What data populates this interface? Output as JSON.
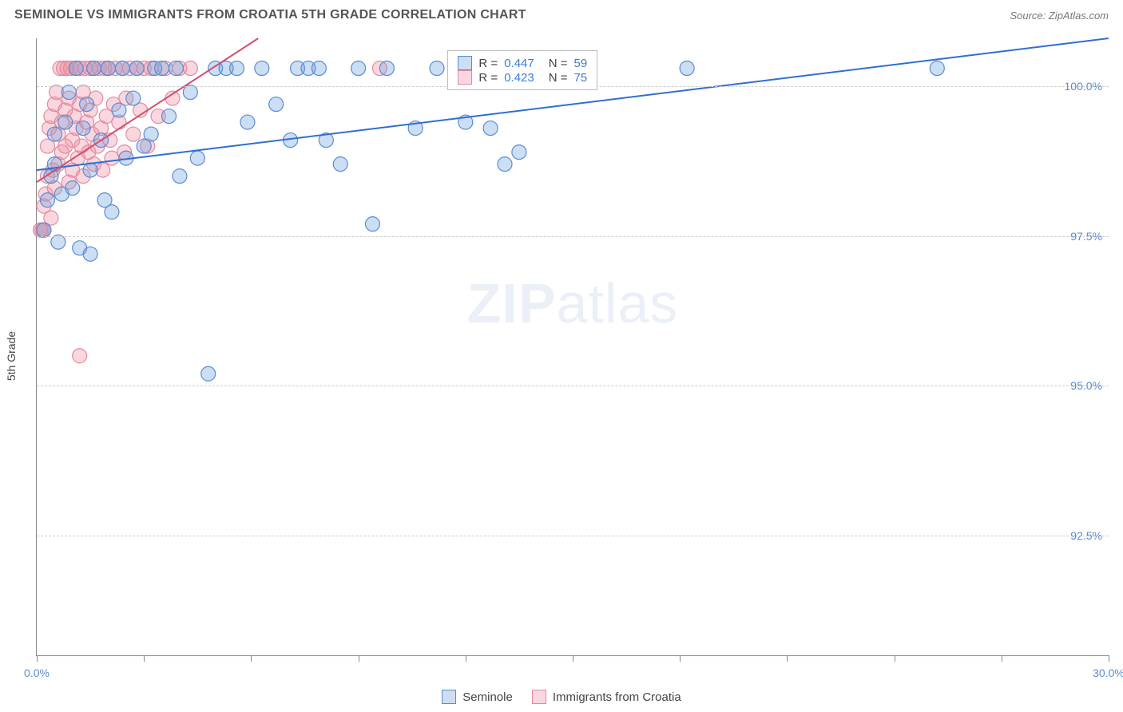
{
  "header": {
    "title": "SEMINOLE VS IMMIGRANTS FROM CROATIA 5TH GRADE CORRELATION CHART",
    "source": "Source: ZipAtlas.com"
  },
  "chart": {
    "type": "scatter",
    "ylabel": "5th Grade",
    "xlim": [
      0,
      30
    ],
    "ylim": [
      90.5,
      100.8
    ],
    "xticks": [
      0,
      3,
      6,
      9,
      12,
      15,
      18,
      21,
      24,
      27,
      30
    ],
    "xtick_labels": {
      "0": "0.0%",
      "30": "30.0%"
    },
    "yticks": [
      92.5,
      95.0,
      97.5,
      100.0
    ],
    "ytick_labels": [
      "92.5%",
      "95.0%",
      "97.5%",
      "100.0%"
    ],
    "background_color": "#ffffff",
    "grid_color": "#cccccc",
    "marker_radius": 9,
    "marker_stroke_width": 1.2,
    "trend_line_width": 2,
    "series": [
      {
        "name": "Seminole",
        "fill": "rgba(110,160,220,0.35)",
        "stroke": "#5b8bd4",
        "trend_color": "#2e6fd0",
        "R": "0.447",
        "N": "59",
        "trend": {
          "x1": 0,
          "y1": 98.6,
          "x2": 30,
          "y2": 100.8
        },
        "points": [
          [
            0.2,
            97.6
          ],
          [
            0.3,
            98.1
          ],
          [
            0.4,
            98.5
          ],
          [
            0.5,
            98.7
          ],
          [
            0.5,
            99.2
          ],
          [
            0.6,
            97.4
          ],
          [
            0.7,
            98.2
          ],
          [
            0.8,
            99.4
          ],
          [
            0.9,
            99.9
          ],
          [
            1.0,
            98.3
          ],
          [
            1.1,
            100.3
          ],
          [
            1.2,
            97.3
          ],
          [
            1.3,
            99.3
          ],
          [
            1.4,
            99.7
          ],
          [
            1.5,
            98.6
          ],
          [
            1.5,
            97.2
          ],
          [
            1.6,
            100.3
          ],
          [
            1.8,
            99.1
          ],
          [
            1.9,
            98.1
          ],
          [
            2.0,
            100.3
          ],
          [
            2.1,
            97.9
          ],
          [
            2.3,
            99.6
          ],
          [
            2.4,
            100.3
          ],
          [
            2.5,
            98.8
          ],
          [
            2.7,
            99.8
          ],
          [
            2.8,
            100.3
          ],
          [
            3.0,
            99.0
          ],
          [
            3.2,
            99.2
          ],
          [
            3.3,
            100.3
          ],
          [
            3.5,
            100.3
          ],
          [
            3.7,
            99.5
          ],
          [
            3.9,
            100.3
          ],
          [
            4.0,
            98.5
          ],
          [
            4.3,
            99.9
          ],
          [
            4.5,
            98.8
          ],
          [
            4.8,
            95.2
          ],
          [
            5.0,
            100.3
          ],
          [
            5.3,
            100.3
          ],
          [
            5.6,
            100.3
          ],
          [
            5.9,
            99.4
          ],
          [
            6.3,
            100.3
          ],
          [
            6.7,
            99.7
          ],
          [
            7.1,
            99.1
          ],
          [
            7.3,
            100.3
          ],
          [
            7.6,
            100.3
          ],
          [
            7.9,
            100.3
          ],
          [
            8.1,
            99.1
          ],
          [
            8.5,
            98.7
          ],
          [
            9.0,
            100.3
          ],
          [
            9.4,
            97.7
          ],
          [
            9.8,
            100.3
          ],
          [
            10.6,
            99.3
          ],
          [
            11.2,
            100.3
          ],
          [
            12.0,
            99.4
          ],
          [
            12.7,
            99.3
          ],
          [
            13.1,
            98.7
          ],
          [
            13.5,
            98.9
          ],
          [
            18.2,
            100.3
          ],
          [
            25.2,
            100.3
          ]
        ]
      },
      {
        "name": "Immigrants from Croatia",
        "fill": "rgba(240,140,160,0.35)",
        "stroke": "#e28aa0",
        "trend_color": "#d44e6f",
        "R": "0.423",
        "N": "75",
        "trend": {
          "x1": 0,
          "y1": 98.4,
          "x2": 6.2,
          "y2": 100.8
        },
        "points": [
          [
            0.1,
            97.6
          ],
          [
            0.15,
            97.6
          ],
          [
            0.2,
            98.0
          ],
          [
            0.25,
            98.2
          ],
          [
            0.3,
            98.5
          ],
          [
            0.3,
            99.0
          ],
          [
            0.35,
            99.3
          ],
          [
            0.4,
            97.8
          ],
          [
            0.4,
            99.5
          ],
          [
            0.45,
            98.6
          ],
          [
            0.5,
            99.7
          ],
          [
            0.5,
            98.3
          ],
          [
            0.55,
            99.9
          ],
          [
            0.6,
            98.7
          ],
          [
            0.6,
            99.2
          ],
          [
            0.65,
            100.3
          ],
          [
            0.7,
            98.9
          ],
          [
            0.7,
            99.4
          ],
          [
            0.75,
            100.3
          ],
          [
            0.8,
            99.0
          ],
          [
            0.8,
            99.6
          ],
          [
            0.85,
            100.3
          ],
          [
            0.9,
            98.4
          ],
          [
            0.9,
            99.8
          ],
          [
            0.95,
            100.3
          ],
          [
            1.0,
            99.1
          ],
          [
            1.0,
            98.6
          ],
          [
            1.05,
            99.5
          ],
          [
            1.1,
            100.3
          ],
          [
            1.1,
            99.3
          ],
          [
            1.15,
            98.8
          ],
          [
            1.2,
            99.7
          ],
          [
            1.2,
            100.3
          ],
          [
            1.25,
            99.0
          ],
          [
            1.3,
            99.9
          ],
          [
            1.3,
            98.5
          ],
          [
            1.35,
            100.3
          ],
          [
            1.4,
            99.4
          ],
          [
            1.45,
            98.9
          ],
          [
            1.5,
            99.6
          ],
          [
            1.5,
            100.3
          ],
          [
            1.55,
            99.2
          ],
          [
            1.6,
            98.7
          ],
          [
            1.6,
            100.3
          ],
          [
            1.65,
            99.8
          ],
          [
            1.7,
            99.0
          ],
          [
            1.75,
            100.3
          ],
          [
            1.8,
            99.3
          ],
          [
            1.85,
            98.6
          ],
          [
            1.9,
            100.3
          ],
          [
            1.95,
            99.5
          ],
          [
            2.0,
            100.3
          ],
          [
            2.05,
            99.1
          ],
          [
            2.1,
            98.8
          ],
          [
            2.15,
            99.7
          ],
          [
            2.2,
            100.3
          ],
          [
            2.3,
            99.4
          ],
          [
            2.4,
            100.3
          ],
          [
            2.45,
            98.9
          ],
          [
            2.5,
            99.8
          ],
          [
            2.6,
            100.3
          ],
          [
            2.7,
            99.2
          ],
          [
            2.8,
            100.3
          ],
          [
            2.9,
            99.6
          ],
          [
            3.0,
            100.3
          ],
          [
            3.1,
            99.0
          ],
          [
            3.2,
            100.3
          ],
          [
            3.4,
            99.5
          ],
          [
            3.6,
            100.3
          ],
          [
            3.8,
            99.8
          ],
          [
            4.0,
            100.3
          ],
          [
            4.3,
            100.3
          ],
          [
            1.2,
            95.5
          ],
          [
            0.2,
            97.6
          ],
          [
            9.6,
            100.3
          ]
        ]
      }
    ],
    "legend_top": {
      "R_label": "R =",
      "N_label": "N ="
    },
    "legend_bottom": [
      "Seminole",
      "Immigrants from Croatia"
    ],
    "watermark": {
      "bold": "ZIP",
      "light": "atlas"
    }
  }
}
